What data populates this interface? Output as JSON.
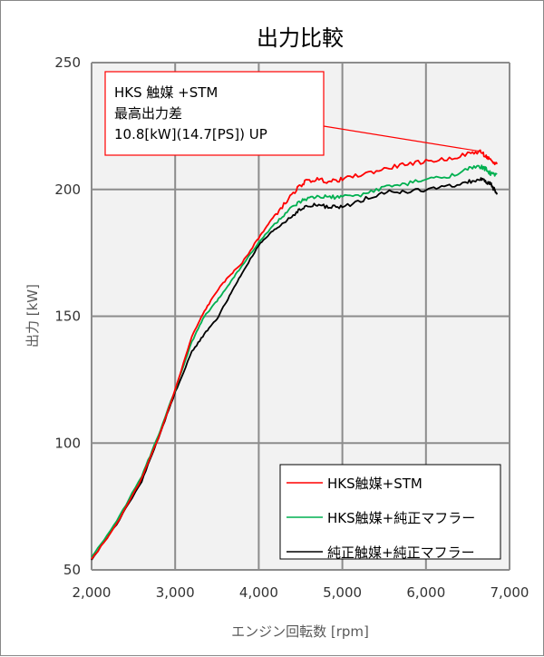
{
  "chart_data": {
    "type": "line",
    "title": "出力比較",
    "xlabel": "エンジン回転数 [rpm]",
    "ylabel": "出力 [kW]",
    "xlim": [
      2000,
      7000
    ],
    "ylim": [
      50,
      250
    ],
    "xticks": [
      "2,000",
      "3,000",
      "4,000",
      "5,000",
      "6,000",
      "7,000"
    ],
    "yticks": [
      "50",
      "100",
      "150",
      "200",
      "250"
    ],
    "grid": true,
    "legend_position": "bottom-right",
    "annotation": {
      "lines": [
        "HKS 触媒 +STM",
        "最高出力差",
        "10.8[kW](14.7[PS])  UP"
      ],
      "color": "#ff0000"
    },
    "series": [
      {
        "name": "HKS触媒+STM",
        "color": "#ff0000",
        "x": [
          2000,
          2300,
          2600,
          2800,
          3000,
          3200,
          3350,
          3500,
          3650,
          3800,
          4000,
          4150,
          4300,
          4450,
          4550,
          4700,
          4850,
          5000,
          5250,
          5500,
          5750,
          6000,
          6250,
          6500,
          6650,
          6720,
          6780,
          6850
        ],
        "y": [
          54,
          68,
          86,
          102,
          121,
          142,
          152,
          160,
          166,
          171,
          181,
          188,
          194,
          200,
          203,
          204,
          203,
          204,
          206,
          208,
          210,
          211,
          212,
          214,
          215,
          213,
          211,
          210
        ]
      },
      {
        "name": "HKS触媒+純正マフラー",
        "color": "#00b050",
        "x": [
          2000,
          2300,
          2600,
          2800,
          3000,
          3200,
          3350,
          3500,
          3650,
          3800,
          4000,
          4150,
          4300,
          4450,
          4550,
          4700,
          4850,
          5000,
          5250,
          5500,
          5750,
          6000,
          6250,
          6500,
          6650,
          6720,
          6780,
          6850
        ],
        "y": [
          55,
          69,
          87,
          103,
          121,
          140,
          150,
          156,
          163,
          170,
          179,
          185,
          190,
          194,
          196,
          197,
          197,
          197,
          198,
          201,
          202,
          204,
          205,
          208,
          209,
          208,
          206,
          206
        ]
      },
      {
        "name": "純正触媒+純正マフラー",
        "color": "#000000",
        "x": [
          2000,
          2300,
          2600,
          2800,
          3000,
          3200,
          3350,
          3500,
          3650,
          3800,
          4000,
          4150,
          4300,
          4450,
          4550,
          4700,
          4850,
          5000,
          5250,
          5500,
          5750,
          6000,
          6250,
          6500,
          6650,
          6720,
          6780,
          6850
        ],
        "y": [
          54,
          68,
          85,
          102,
          120,
          136,
          143,
          149,
          158,
          167,
          178,
          183,
          187,
          191,
          193,
          194,
          193,
          193,
          196,
          199,
          199,
          200,
          201,
          203,
          204,
          203,
          202,
          198
        ]
      }
    ]
  }
}
